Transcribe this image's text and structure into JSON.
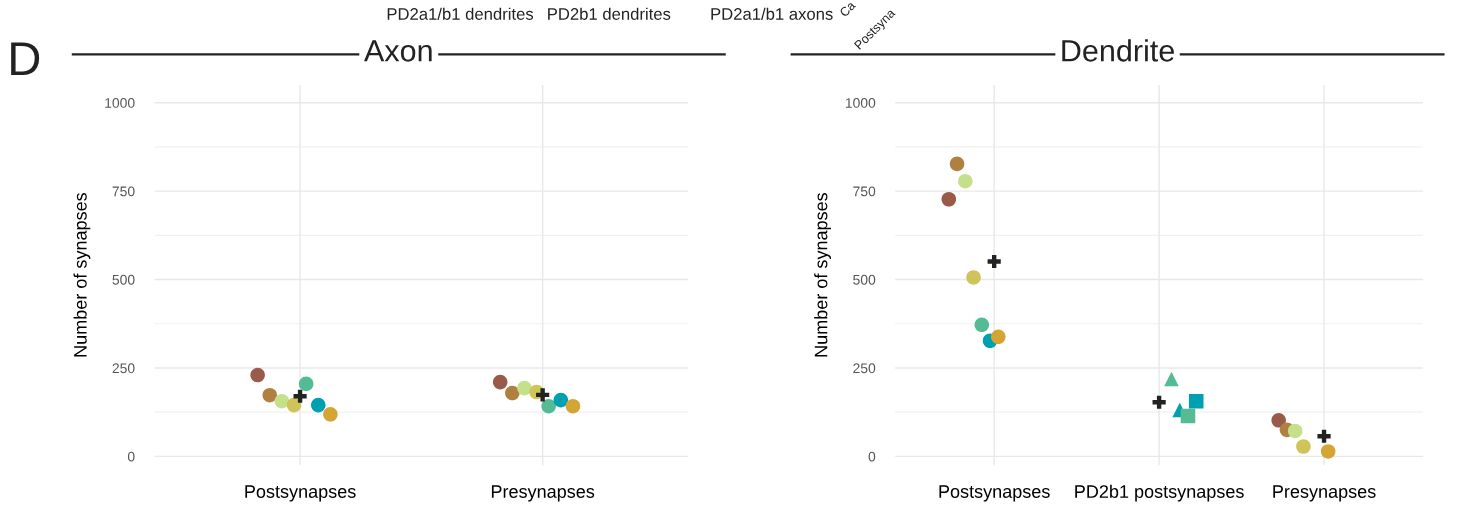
{
  "chart_data": [
    {
      "type": "scatter",
      "title": "Axon",
      "ylabel": "Number of synapses",
      "categories": [
        "Postsynapses",
        "Presynapses"
      ],
      "ylim": [
        -25,
        1050
      ],
      "yticks": [
        0,
        250,
        500,
        750,
        1000
      ],
      "grid": true,
      "marker": "circle",
      "annotations": [
        "D",
        "PD2a1/b1 dendrites",
        "PD2b1 dendrites",
        "PD2a1/b1 axons",
        "Ca",
        "Postsyna"
      ],
      "series": [
        {
          "color": "#9a5a4a",
          "values": [
            230,
            210
          ]
        },
        {
          "color": "#b08040",
          "values": [
            173,
            179
          ]
        },
        {
          "color": "#c5e08a",
          "values": [
            156,
            193
          ]
        },
        {
          "color": "#cfc45a",
          "values": [
            145,
            182
          ]
        },
        {
          "color": "#55bb95",
          "values": [
            205,
            142
          ]
        },
        {
          "color": "#00a0b0",
          "values": [
            145,
            159
          ]
        },
        {
          "color": "#d4a535",
          "values": [
            119,
            142
          ]
        },
        {
          "color": "#222222",
          "marker": "cross",
          "values": [
            170,
            174
          ]
        }
      ]
    },
    {
      "type": "scatter",
      "title": "Dendrite",
      "ylabel": "Number of synapses",
      "categories": [
        "Postsynapses",
        "PD2b1 postsynapses",
        "Presynapses"
      ],
      "ylim": [
        -25,
        1050
      ],
      "yticks": [
        0,
        250,
        500,
        750,
        1000
      ],
      "grid": true,
      "marker": "circle",
      "series": [
        {
          "color": "#9a5a4a",
          "values": [
            727,
            null,
            102
          ]
        },
        {
          "color": "#b08040",
          "values": [
            827,
            null,
            75
          ]
        },
        {
          "color": "#c5e08a",
          "values": [
            778,
            null,
            72
          ]
        },
        {
          "color": "#cfc45a",
          "values": [
            506,
            null,
            28
          ]
        },
        {
          "color": "#55bb95",
          "values": [
            372,
            null,
            null
          ]
        },
        {
          "color": "#00a0b0",
          "values": [
            327,
            null,
            null
          ]
        },
        {
          "color": "#d4a535",
          "values": [
            338,
            null,
            14
          ]
        },
        {
          "color": "#55bb95",
          "marker": "triangle",
          "values": [
            null,
            219,
            null
          ]
        },
        {
          "color": "#00a0b0",
          "marker": "triangle",
          "values": [
            null,
            131,
            null
          ]
        },
        {
          "color": "#55bb95",
          "marker": "square",
          "values": [
            null,
            114,
            null
          ]
        },
        {
          "color": "#00a0b0",
          "marker": "square",
          "values": [
            null,
            156,
            null
          ]
        },
        {
          "color": "#222222",
          "marker": "cross",
          "values": [
            551,
            153,
            57
          ]
        }
      ]
    }
  ]
}
